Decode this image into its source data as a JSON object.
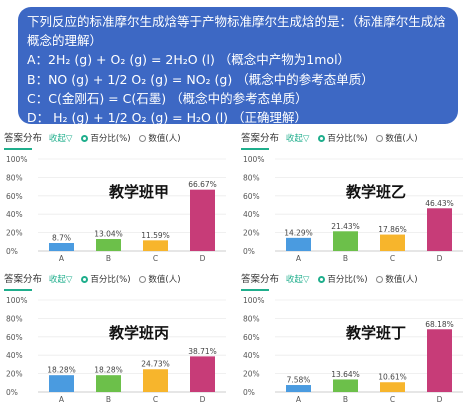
{
  "question": {
    "lines": [
      "下列反应的标准摩尔生成焓等于产物标准摩尔生成焓的是：（标准摩尔生成焓概念的理解）",
      "A：2H₂ (g) + O₂ (g) = 2H₂O (l) （概念中产物为1mol）",
      "B：NO (g) + 1/2 O₂ (g) = NO₂ (g) （概念中的参考态单质）",
      "C：C(金刚石) = C(石墨) （概念中的参考态单质）",
      "D： H₂ (g) + 1/2 O₂ (g) = H₂O (l) （正确理解）"
    ]
  },
  "panel_header": {
    "title": "答案分布",
    "collapse": "收起▽",
    "option_percent": "百分比(%)",
    "option_count": "数值(人)"
  },
  "colors": {
    "A": "#4a9be0",
    "B": "#6cc04a",
    "C": "#f7b52c",
    "D": "#c73c78",
    "accent": "#1fae8c"
  },
  "chart_data": [
    {
      "type": "bar",
      "title": "教学班甲",
      "categories": [
        "A",
        "B",
        "C",
        "D"
      ],
      "values": [
        8.7,
        13.04,
        11.59,
        66.67
      ],
      "labels": [
        "8.7%",
        "13.04%",
        "11.59%",
        "66.67%"
      ],
      "yticks": [
        "100%",
        "80%",
        "60%",
        "40%",
        "20%",
        "0%"
      ],
      "ylim": [
        0,
        100
      ],
      "grid": true
    },
    {
      "type": "bar",
      "title": "教学班乙",
      "categories": [
        "A",
        "B",
        "C",
        "D"
      ],
      "values": [
        14.29,
        21.43,
        17.86,
        46.43
      ],
      "labels": [
        "14.29%",
        "21.43%",
        "17.86%",
        "46.43%"
      ],
      "yticks": [
        "100%",
        "80%",
        "60%",
        "40%",
        "20%",
        "0%"
      ],
      "ylim": [
        0,
        100
      ],
      "grid": true
    },
    {
      "type": "bar",
      "title": "教学班丙",
      "categories": [
        "A",
        "B",
        "C",
        "D"
      ],
      "values": [
        18.28,
        18.28,
        24.73,
        38.71
      ],
      "labels": [
        "18.28%",
        "18.28%",
        "24.73%",
        "38.71%"
      ],
      "yticks": [
        "100%",
        "80%",
        "60%",
        "40%",
        "20%",
        "0%"
      ],
      "ylim": [
        0,
        100
      ],
      "grid": true
    },
    {
      "type": "bar",
      "title": "教学班丁",
      "categories": [
        "A",
        "B",
        "C",
        "D"
      ],
      "values": [
        7.58,
        13.64,
        10.61,
        68.18
      ],
      "labels": [
        "7.58%",
        "13.64%",
        "10.61%",
        "68.18%"
      ],
      "yticks": [
        "100%",
        "80%",
        "60%",
        "40%",
        "20%",
        "0%"
      ],
      "ylim": [
        0,
        100
      ],
      "grid": true
    }
  ]
}
